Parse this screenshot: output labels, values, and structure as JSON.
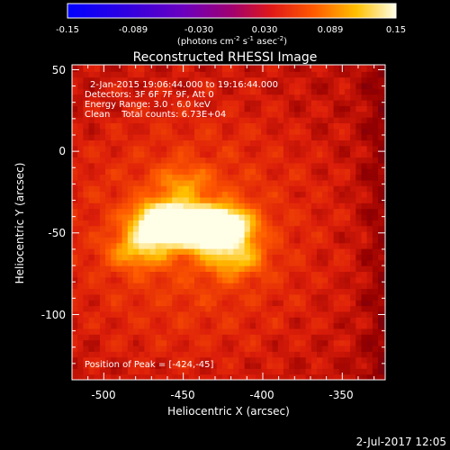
{
  "chart_data": {
    "type": "heatmap",
    "title": "Reconstructed RHESSI Image",
    "xlabel": "Heliocentric X (arcsec)",
    "ylabel": "Heliocentric Y (arcsec)",
    "xlim": [
      -520,
      -323
    ],
    "ylim": [
      -140,
      53
    ],
    "xticks": [
      -500,
      -450,
      -400,
      -350
    ],
    "yticks": [
      50,
      0,
      -50,
      -100
    ],
    "colorbar": {
      "ticks": [
        "-0.15",
        "-0.089",
        "-0.030",
        "0.030",
        "0.089",
        "0.15"
      ],
      "range": [
        -0.15,
        0.15
      ],
      "unit_prefix": "(photons cm",
      "unit_exp1": "-2",
      "unit_mid": " s",
      "unit_exp2": "-1",
      "unit_mid2": " asec",
      "unit_exp3": "-2",
      "unit_suffix": ")"
    },
    "annotations": {
      "time_range": "2-Jan-2015 19:06:44.000 to 19:16:44.000",
      "detectors": "Detectors: 3F 6F 7F 9F, Att 0",
      "energy": "Energy Range: 3.0 - 6.0 keV",
      "clean": "Clean    Total counts: 6.73E+04",
      "peak": "Position of Peak = [-424,-45]"
    },
    "sources": [
      {
        "x": -463,
        "y": -43,
        "amplitude": 0.13
      },
      {
        "x": -426,
        "y": -46,
        "amplitude": 0.15
      },
      {
        "x": -445,
        "y": -47,
        "amplitude": 0.1
      },
      {
        "x": -478,
        "y": -60,
        "amplitude": 0.06
      },
      {
        "x": -418,
        "y": -65,
        "amplitude": 0.06
      },
      {
        "x": -450,
        "y": -20,
        "amplitude": 0.04
      }
    ],
    "peak": [
      -424,
      -45
    ]
  },
  "footer": {
    "date": "2-Jul-2017 12:05"
  }
}
